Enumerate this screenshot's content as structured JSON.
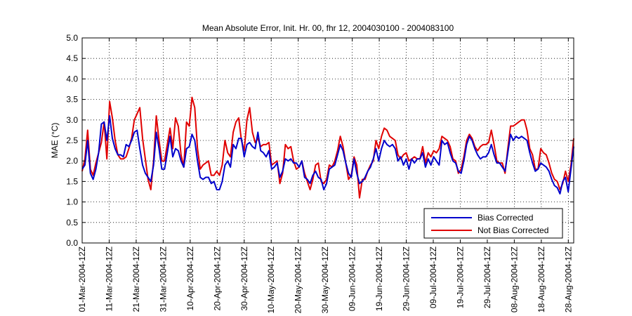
{
  "chart_data": {
    "type": "line",
    "title": "Mean Absolute Error, Init. Hr. 00, fhr 12, 2004030100 - 2004083100",
    "xlabel": "",
    "ylabel": "MAE (°C)",
    "ylim": [
      0,
      5
    ],
    "yticks": [
      "0.0",
      "0.5",
      "1.0",
      "1.5",
      "2.0",
      "2.5",
      "3.0",
      "3.5",
      "4.0",
      "4.5",
      "5.0"
    ],
    "xlim_days": [
      0,
      182
    ],
    "xticks": [
      {
        "day": 0,
        "label": "01-Mar-2004-12Z"
      },
      {
        "day": 10,
        "label": "11-Mar-2004-12Z"
      },
      {
        "day": 20,
        "label": "21-Mar-2004-12Z"
      },
      {
        "day": 30,
        "label": "31-Mar-2004-12Z"
      },
      {
        "day": 40,
        "label": "10-Apr-2004-12Z"
      },
      {
        "day": 50,
        "label": "20-Apr-2004-12Z"
      },
      {
        "day": 60,
        "label": "30-Apr-2004-12Z"
      },
      {
        "day": 70,
        "label": "10-May-2004-12Z"
      },
      {
        "day": 80,
        "label": "20-May-2004-12Z"
      },
      {
        "day": 90,
        "label": "30-May-2004-12Z"
      },
      {
        "day": 100,
        "label": "09-Jun-2004-12Z"
      },
      {
        "day": 110,
        "label": "19-Jun-2004-12Z"
      },
      {
        "day": 120,
        "label": "29-Jun-2004-12Z"
      },
      {
        "day": 130,
        "label": "09-Jul-2004-12Z"
      },
      {
        "day": 140,
        "label": "19-Jul-2004-12Z"
      },
      {
        "day": 150,
        "label": "29-Jul-2004-12Z"
      },
      {
        "day": 160,
        "label": "08-Aug-2004-12Z"
      },
      {
        "day": 170,
        "label": "18-Aug-2004-12Z"
      },
      {
        "day": 180,
        "label": "28-Aug-2004-12Z"
      }
    ],
    "grid": true,
    "legend_position": "bottom-right",
    "series": [
      {
        "name": "Bias Corrected",
        "color": "#0000cc",
        "values": [
          1.8,
          1.9,
          2.5,
          1.7,
          1.55,
          1.8,
          2.2,
          2.9,
          2.95,
          2.5,
          3.1,
          2.55,
          2.3,
          2.15,
          2.15,
          2.1,
          2.4,
          2.35,
          2.5,
          2.7,
          2.75,
          2.3,
          1.9,
          1.7,
          1.6,
          1.5,
          1.9,
          2.7,
          2.3,
          1.8,
          1.8,
          2.2,
          2.6,
          2.1,
          2.3,
          2.25,
          2.0,
          1.85,
          2.3,
          2.35,
          2.65,
          2.5,
          2.0,
          1.6,
          1.55,
          1.6,
          1.6,
          1.45,
          1.5,
          1.3,
          1.3,
          1.5,
          1.9,
          2.0,
          1.85,
          2.4,
          2.3,
          2.55,
          2.55,
          2.1,
          2.4,
          2.45,
          2.35,
          2.3,
          2.7,
          2.25,
          2.2,
          2.1,
          2.25,
          1.8,
          1.85,
          1.95,
          1.6,
          1.75,
          2.05,
          2.0,
          2.05,
          1.95,
          1.95,
          1.85,
          2.0,
          1.6,
          1.55,
          1.45,
          1.65,
          1.75,
          1.6,
          1.55,
          1.3,
          1.45,
          1.8,
          1.85,
          1.9,
          2.15,
          2.4,
          2.25,
          1.95,
          1.7,
          1.6,
          2.05,
          1.7,
          1.45,
          1.5,
          1.6,
          1.75,
          1.85,
          2.05,
          2.3,
          2.0,
          2.3,
          2.5,
          2.4,
          2.35,
          2.4,
          2.3,
          2.0,
          2.1,
          1.9,
          2.05,
          1.8,
          2.05,
          1.95,
          2.05,
          2.05,
          2.2,
          1.85,
          2.05,
          1.9,
          2.1,
          2.0,
          1.9,
          2.5,
          2.4,
          2.45,
          2.2,
          2.0,
          1.95,
          1.75,
          1.7,
          2.0,
          2.4,
          2.6,
          2.5,
          2.3,
          2.15,
          2.05,
          2.1,
          2.1,
          2.2,
          2.4,
          2.15,
          1.95,
          1.95,
          1.85,
          1.75,
          2.2,
          2.65,
          2.5,
          2.6,
          2.55,
          2.6,
          2.55,
          2.5,
          2.2,
          1.95,
          1.75,
          1.8,
          1.95,
          1.9,
          1.85,
          1.75,
          1.55,
          1.4,
          1.35,
          1.2,
          1.5,
          1.6,
          1.25,
          1.8,
          2.35
        ]
      },
      {
        "name": "Not Bias Corrected",
        "color": "#e00000",
        "values": [
          1.75,
          2.05,
          2.75,
          1.8,
          1.65,
          1.95,
          2.2,
          2.45,
          2.95,
          2.05,
          3.45,
          3.05,
          2.5,
          2.15,
          2.05,
          2.05,
          2.1,
          2.3,
          2.55,
          3.0,
          3.15,
          3.3,
          2.55,
          2.05,
          1.55,
          1.3,
          2.0,
          3.1,
          2.5,
          2.0,
          2.0,
          2.4,
          2.8,
          2.3,
          3.05,
          2.85,
          2.15,
          1.85,
          2.95,
          2.85,
          3.55,
          3.3,
          2.3,
          1.8,
          1.9,
          1.95,
          2.0,
          1.65,
          1.65,
          1.75,
          1.65,
          1.9,
          2.5,
          2.2,
          2.1,
          2.7,
          2.95,
          3.05,
          2.5,
          2.25,
          3.0,
          3.3,
          2.7,
          2.45,
          2.55,
          2.35,
          2.4,
          2.4,
          2.45,
          1.9,
          1.95,
          2.0,
          1.45,
          1.7,
          2.4,
          2.3,
          2.35,
          2.0,
          1.8,
          1.85,
          2.0,
          1.7,
          1.5,
          1.3,
          1.55,
          1.9,
          1.95,
          1.5,
          1.45,
          1.55,
          1.9,
          1.85,
          2.0,
          2.25,
          2.6,
          2.35,
          1.95,
          1.55,
          1.65,
          2.1,
          1.9,
          1.1,
          1.55,
          1.55,
          1.75,
          1.9,
          2.0,
          2.5,
          2.3,
          2.6,
          2.8,
          2.75,
          2.6,
          2.55,
          2.5,
          2.15,
          2.05,
          2.15,
          2.2,
          2.0,
          2.05,
          2.1,
          2.05,
          2.05,
          2.35,
          1.95,
          2.2,
          2.1,
          2.25,
          2.2,
          2.3,
          2.6,
          2.55,
          2.5,
          2.35,
          2.05,
          2.0,
          1.7,
          1.8,
          2.1,
          2.5,
          2.65,
          2.55,
          2.35,
          2.25,
          2.35,
          2.4,
          2.4,
          2.45,
          2.75,
          2.4,
          2.0,
          1.95,
          1.95,
          1.7,
          2.3,
          2.85,
          2.85,
          2.9,
          2.95,
          3.0,
          3.0,
          2.75,
          2.3,
          2.15,
          1.8,
          1.8,
          2.3,
          2.2,
          2.15,
          1.95,
          1.7,
          1.55,
          1.5,
          1.3,
          1.45,
          1.75,
          1.5,
          1.9,
          2.55
        ]
      }
    ]
  }
}
